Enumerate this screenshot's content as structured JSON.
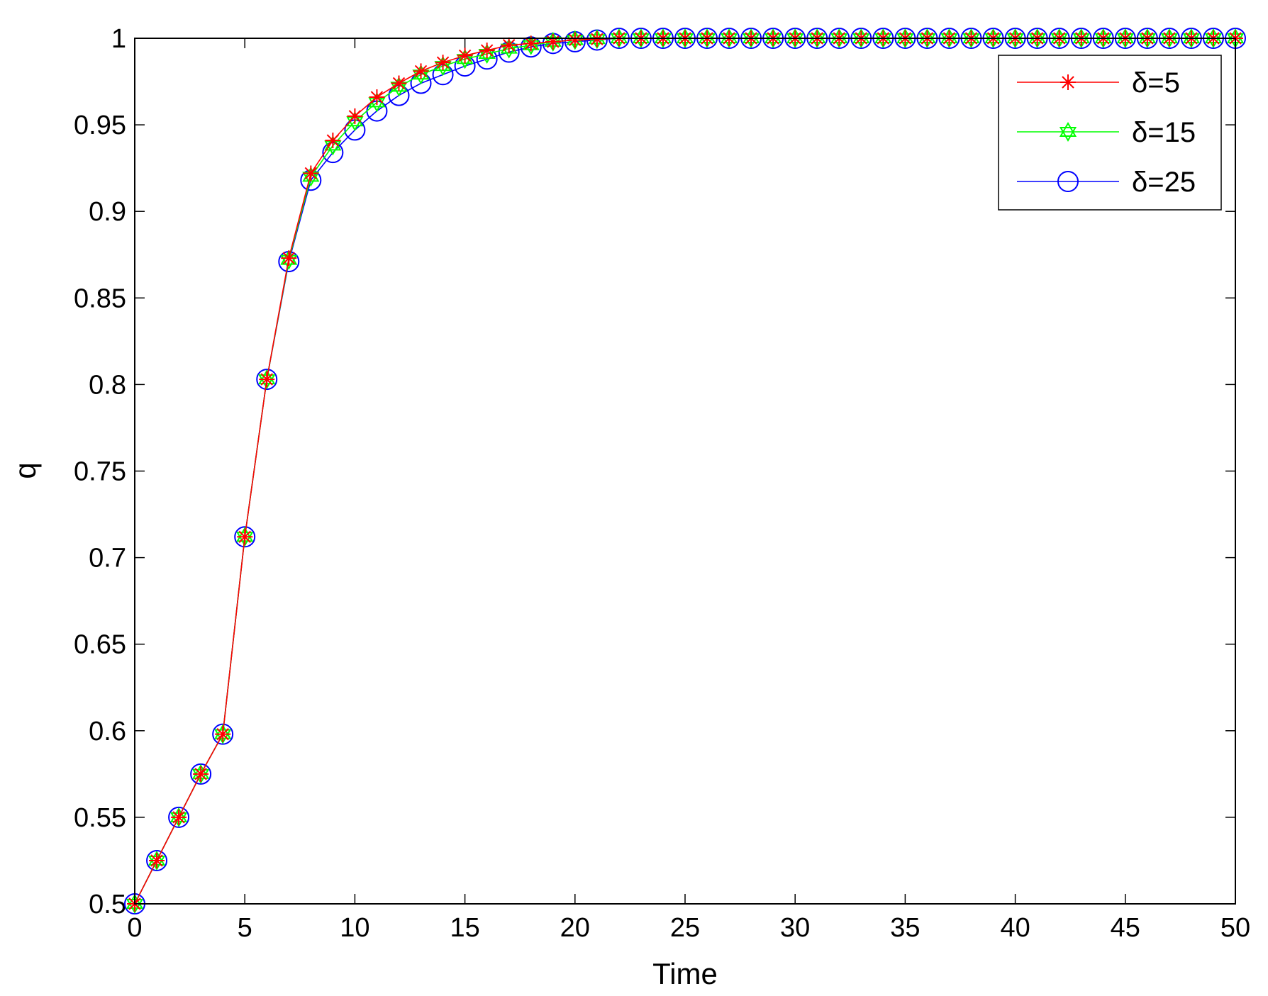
{
  "chart_data": {
    "type": "line",
    "title": "",
    "xlabel": "Time",
    "ylabel": "q",
    "xlim": [
      0,
      50
    ],
    "ylim": [
      0.5,
      1
    ],
    "xticks": [
      "0",
      "5",
      "10",
      "15",
      "20",
      "25",
      "30",
      "35",
      "40",
      "45",
      "50"
    ],
    "yticks": [
      "0.5",
      "0.55",
      "0.6",
      "0.65",
      "0.7",
      "0.75",
      "0.8",
      "0.85",
      "0.9",
      "0.95",
      "1"
    ],
    "grid": false,
    "legend_position": "top-right",
    "x": [
      0,
      1,
      2,
      3,
      4,
      5,
      6,
      7,
      8,
      9,
      10,
      11,
      12,
      13,
      14,
      15,
      16,
      17,
      18,
      19,
      20,
      21,
      22,
      23,
      24,
      25,
      26,
      27,
      28,
      29,
      30,
      31,
      32,
      33,
      34,
      35,
      36,
      37,
      38,
      39,
      40,
      41,
      42,
      43,
      44,
      45,
      46,
      47,
      48,
      49,
      50
    ],
    "series": [
      {
        "name": "δ=5",
        "color": "#ff0000",
        "marker": "asterisk",
        "values": [
          0.5,
          0.525,
          0.55,
          0.575,
          0.598,
          0.712,
          0.803,
          0.873,
          0.922,
          0.941,
          0.955,
          0.966,
          0.974,
          0.981,
          0.986,
          0.99,
          0.993,
          0.996,
          0.997,
          0.998,
          0.999,
          0.9995,
          1,
          1,
          1,
          1,
          1,
          1,
          1,
          1,
          1,
          1,
          1,
          1,
          1,
          1,
          1,
          1,
          1,
          1,
          1,
          1,
          1,
          1,
          1,
          1,
          1,
          1,
          1,
          1,
          1
        ]
      },
      {
        "name": "δ=15",
        "color": "#00ff00",
        "marker": "hexagram",
        "values": [
          0.5,
          0.525,
          0.55,
          0.575,
          0.598,
          0.712,
          0.803,
          0.872,
          0.92,
          0.938,
          0.952,
          0.963,
          0.972,
          0.979,
          0.984,
          0.988,
          0.991,
          0.994,
          0.996,
          0.998,
          0.999,
          0.9995,
          1,
          1,
          1,
          1,
          1,
          1,
          1,
          1,
          1,
          1,
          1,
          1,
          1,
          1,
          1,
          1,
          1,
          1,
          1,
          1,
          1,
          1,
          1,
          1,
          1,
          1,
          1,
          1,
          1
        ]
      },
      {
        "name": "δ=25",
        "color": "#0000ff",
        "marker": "circle",
        "values": [
          0.5,
          0.525,
          0.55,
          0.575,
          0.598,
          0.712,
          0.803,
          0.871,
          0.918,
          0.934,
          0.947,
          0.958,
          0.967,
          0.974,
          0.979,
          0.984,
          0.988,
          0.992,
          0.995,
          0.997,
          0.998,
          0.999,
          1,
          1,
          1,
          1,
          1,
          1,
          1,
          1,
          1,
          1,
          1,
          1,
          1,
          1,
          1,
          1,
          1,
          1,
          1,
          1,
          1,
          1,
          1,
          1,
          1,
          1,
          1,
          1,
          1
        ]
      }
    ]
  }
}
